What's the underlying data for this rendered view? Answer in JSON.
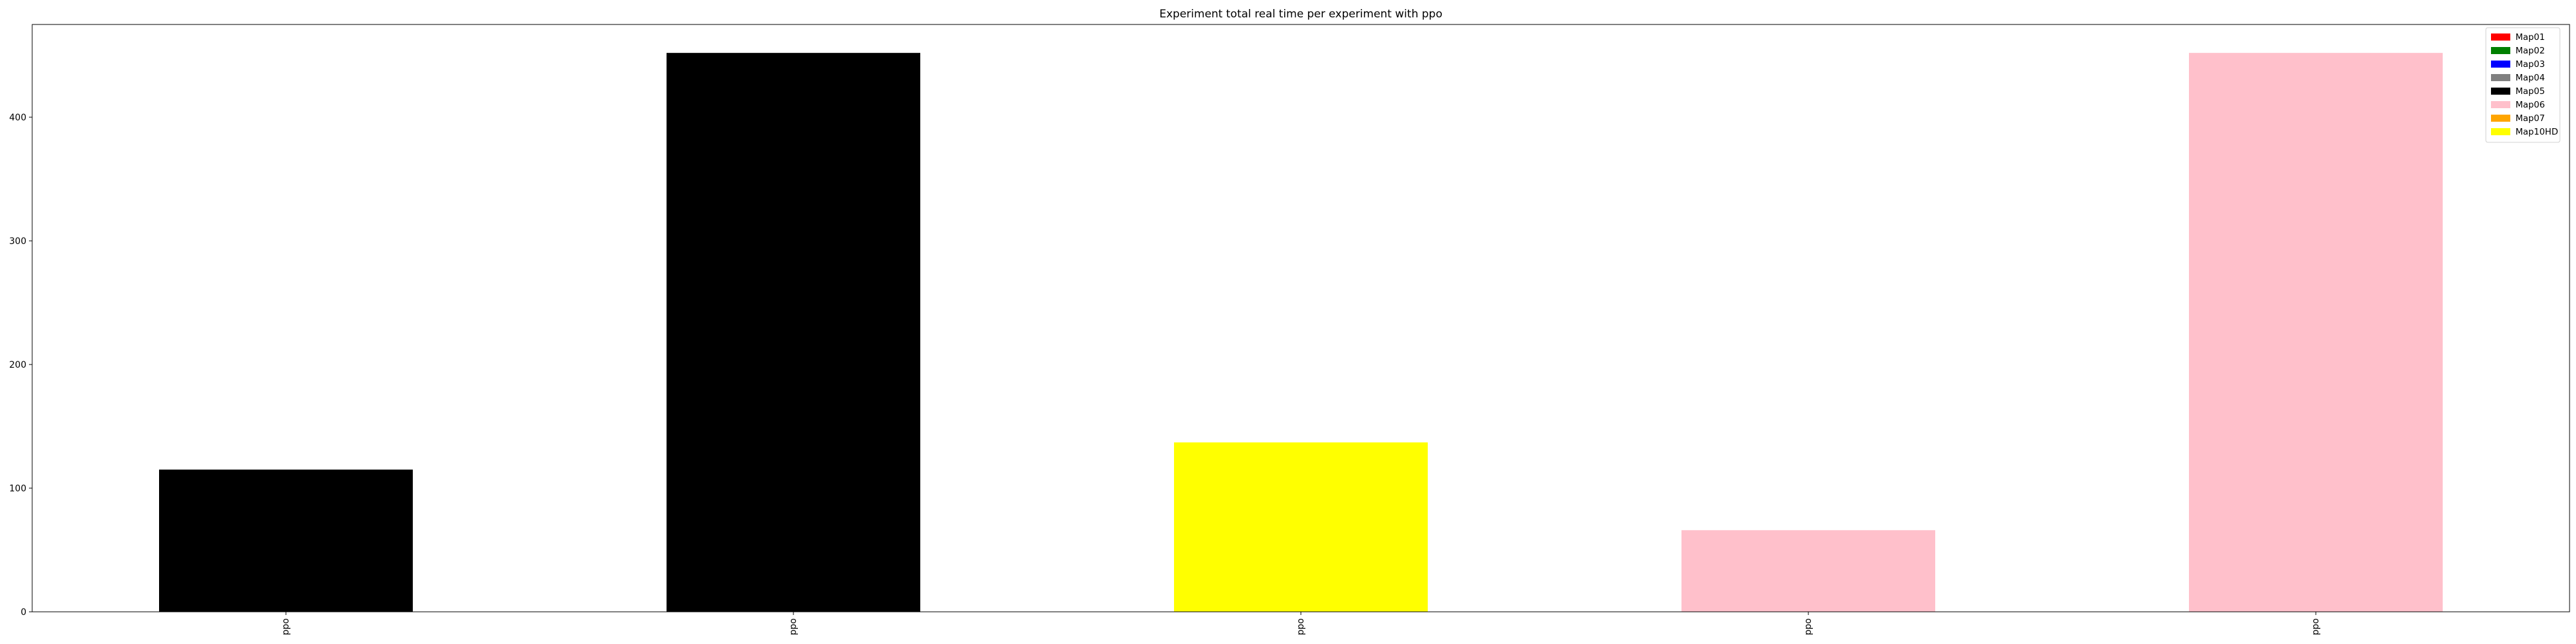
{
  "chart_data": {
    "type": "bar",
    "title": "Experiment total real time per experiment with ppo",
    "xlabel": "",
    "ylabel": "",
    "categories": [
      "ppo",
      "ppo",
      "ppo",
      "ppo",
      "ppo"
    ],
    "values": [
      115,
      452,
      137,
      66,
      452
    ],
    "bar_colors": [
      "#000000",
      "#000000",
      "#ffff00",
      "#ffc0cb",
      "#ffc0cb"
    ],
    "yticks": [
      0,
      100,
      200,
      300,
      400
    ],
    "ylim": [
      0,
      475
    ],
    "grid": false,
    "legend_position": "top-right",
    "legend": [
      {
        "label": "Map01",
        "color": "#ff0000"
      },
      {
        "label": "Map02",
        "color": "#008000"
      },
      {
        "label": "Map03",
        "color": "#0000ff"
      },
      {
        "label": "Map04",
        "color": "#808080"
      },
      {
        "label": "Map05",
        "color": "#000000"
      },
      {
        "label": "Map06",
        "color": "#ffc0cb"
      },
      {
        "label": "Map07",
        "color": "#ffa500"
      },
      {
        "label": "Map10HD",
        "color": "#ffff00"
      }
    ]
  }
}
